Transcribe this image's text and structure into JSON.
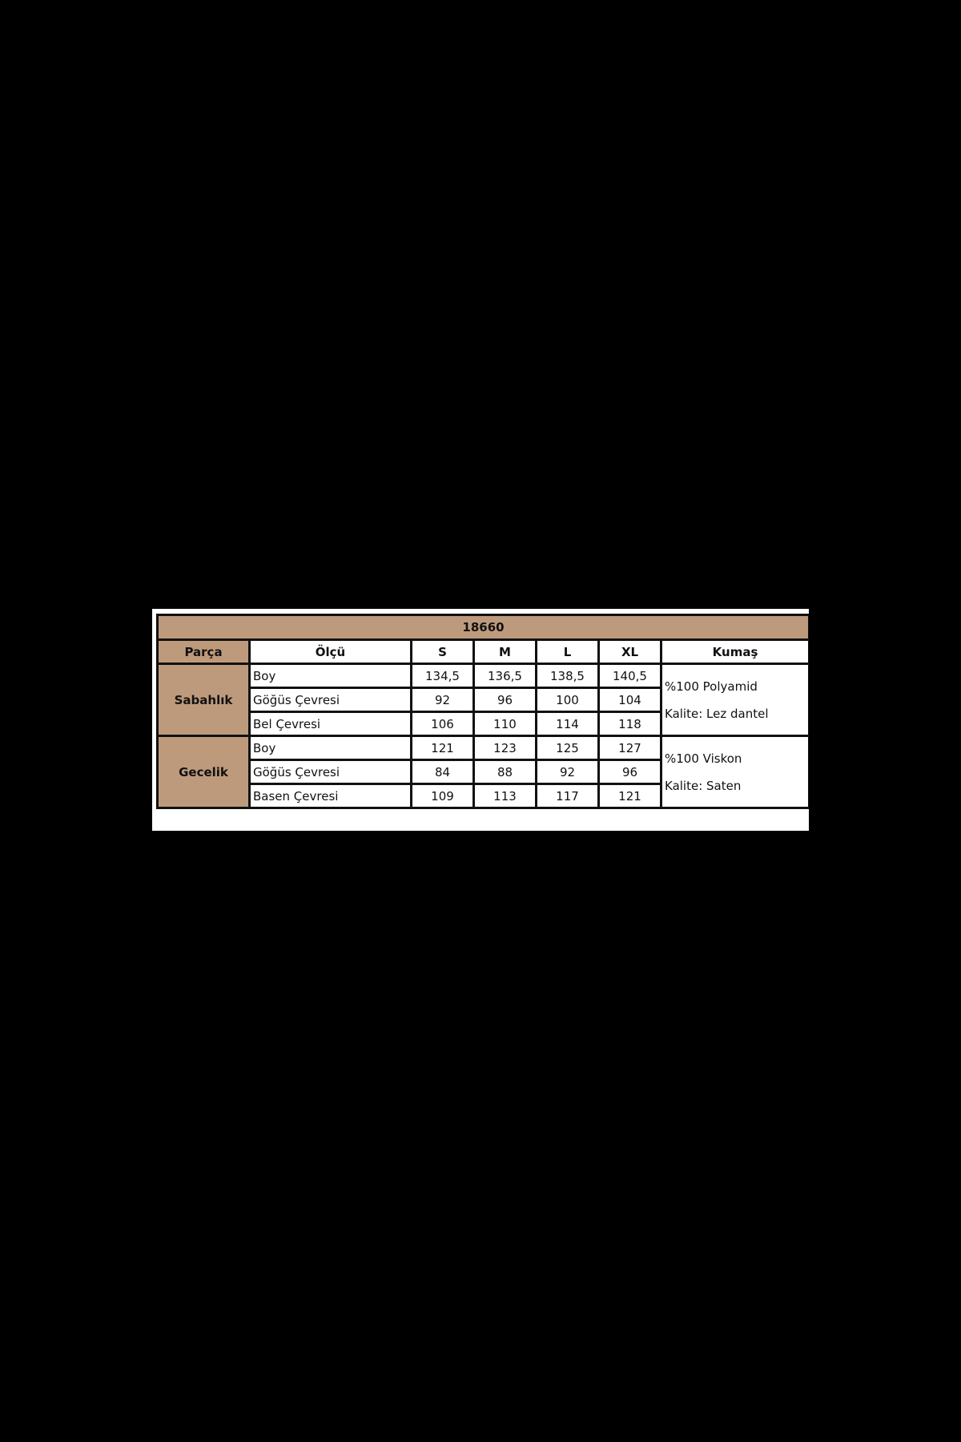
{
  "title": "18660",
  "headers": [
    "Parça",
    "Ölçü",
    "S",
    "M",
    "L",
    "XL",
    "Kumaş"
  ],
  "groups": [
    {
      "part": "Sabahlık",
      "rows": [
        {
          "measure": "Boy",
          "values": [
            "134,5",
            "136,5",
            "138,5",
            "140,5"
          ]
        },
        {
          "measure": "Göğüs Çevresi",
          "values": [
            "92",
            "96",
            "100",
            "104"
          ]
        },
        {
          "measure": "Bel Çevresi",
          "values": [
            "106",
            "110",
            "114",
            "118"
          ]
        }
      ],
      "fabric": [
        "%100 Polyamid",
        "Kalite: Lez dantel"
      ]
    },
    {
      "part": "Gecelik",
      "rows": [
        {
          "measure": "Boy",
          "values": [
            "121",
            "123",
            "125",
            "127"
          ]
        },
        {
          "measure": "Göğüs Çevresi",
          "values": [
            "84",
            "88",
            "92",
            "96"
          ]
        },
        {
          "measure": "Basen Çevresi",
          "values": [
            "109",
            "113",
            "117",
            "121"
          ]
        }
      ],
      "fabric": [
        "%100 Viskon",
        "Kalite: Saten"
      ]
    }
  ],
  "colors": {
    "header_bg": "#be9a7c",
    "border": "#111111",
    "background": "#000000"
  }
}
